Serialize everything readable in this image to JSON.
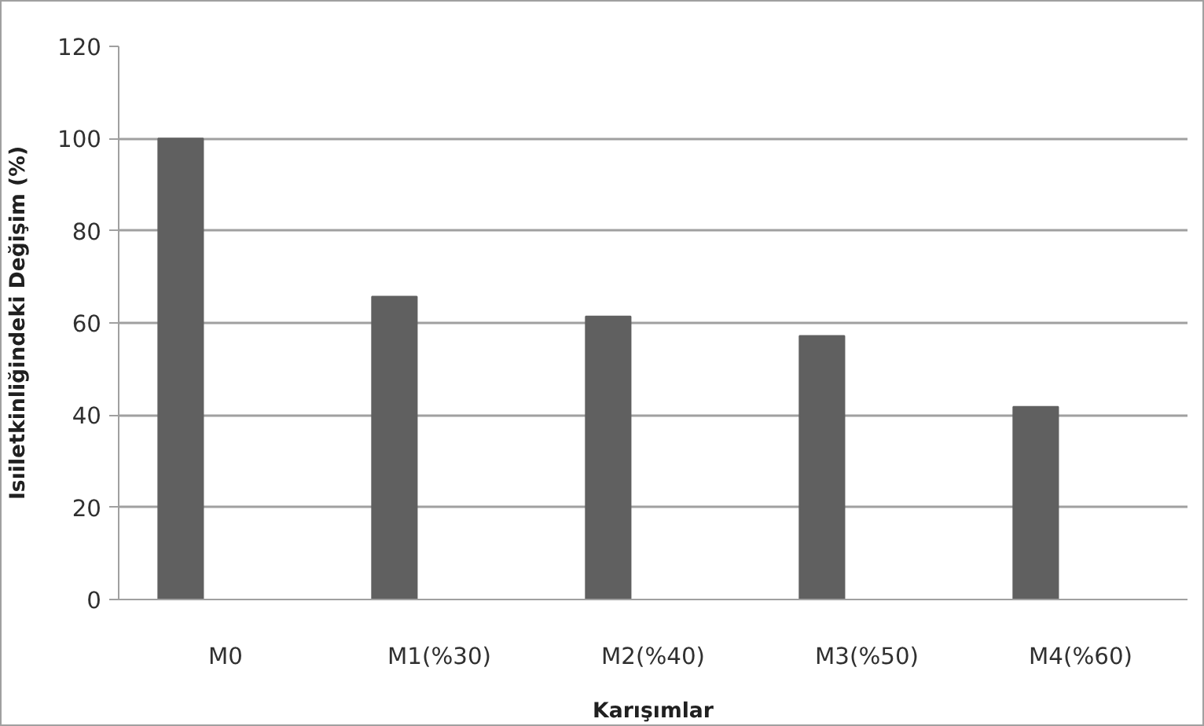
{
  "chart_data": {
    "type": "bar",
    "xlabel": "Karışımlar",
    "ylabel": "Isıiletkinliğindeki Değişim (%)",
    "categories": [
      "M0",
      "M1(%30)",
      "M2(%40)",
      "M3(%50)",
      "M4(%60)"
    ],
    "values": [
      100,
      65.7,
      61.4,
      57.2,
      41.8
    ],
    "color": "#606060",
    "ylim": [
      0,
      120
    ],
    "yticks": [
      0,
      20,
      40,
      60,
      80,
      100,
      120
    ],
    "grid": "y"
  }
}
